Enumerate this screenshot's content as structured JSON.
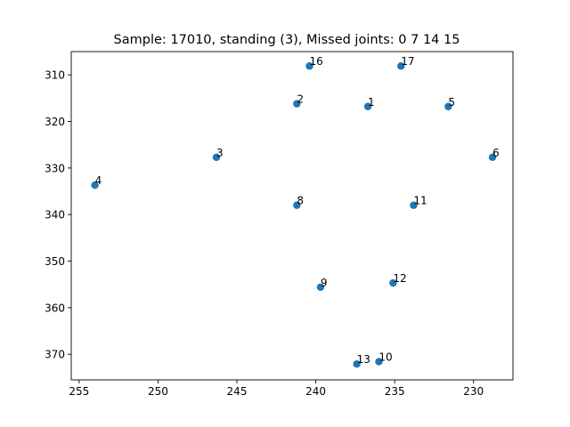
{
  "chart_data": {
    "type": "scatter",
    "title": "Sample: 17010, standing (3), Missed joints: 0  7  14  15",
    "xlabel": "",
    "ylabel": "",
    "xlim": [
      255.5,
      227.5
    ],
    "ylim": [
      375.5,
      305
    ],
    "x_inverted": true,
    "y_inverted": true,
    "grid": false,
    "marker_color": "#1f77b4",
    "xticks": [
      255,
      250,
      245,
      240,
      235,
      230
    ],
    "yticks": [
      310,
      320,
      330,
      340,
      350,
      360,
      370
    ],
    "points": [
      {
        "label": "1",
        "x": 236.7,
        "y": 316.8
      },
      {
        "label": "2",
        "x": 241.2,
        "y": 316.2
      },
      {
        "label": "3",
        "x": 246.3,
        "y": 327.7
      },
      {
        "label": "4",
        "x": 254.0,
        "y": 333.7
      },
      {
        "label": "5",
        "x": 231.6,
        "y": 316.8
      },
      {
        "label": "6",
        "x": 228.8,
        "y": 327.7
      },
      {
        "label": "8",
        "x": 241.2,
        "y": 338.0
      },
      {
        "label": "9",
        "x": 239.7,
        "y": 355.6
      },
      {
        "label": "10",
        "x": 236.0,
        "y": 371.6
      },
      {
        "label": "11",
        "x": 233.8,
        "y": 338.0
      },
      {
        "label": "12",
        "x": 235.1,
        "y": 354.7
      },
      {
        "label": "13",
        "x": 237.4,
        "y": 372.1
      },
      {
        "label": "16",
        "x": 240.4,
        "y": 308.1
      },
      {
        "label": "17",
        "x": 234.6,
        "y": 308.1
      }
    ]
  }
}
